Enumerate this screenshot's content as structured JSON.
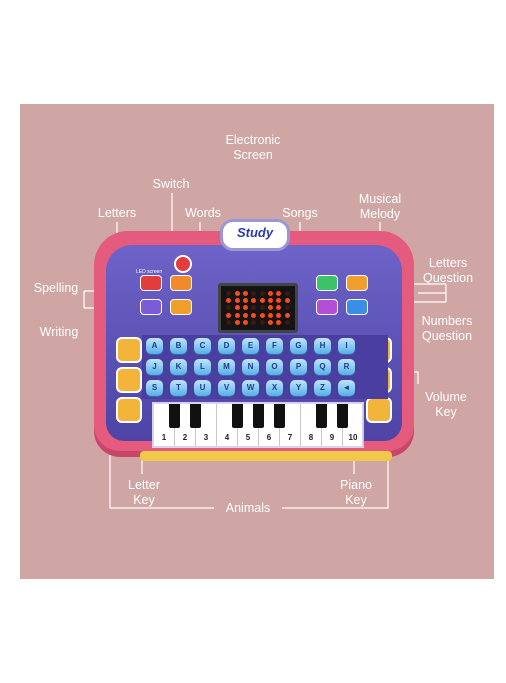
{
  "labels": {
    "electronic_screen": "Electronic\nScreen",
    "switch": "Switch",
    "letters": "Letters",
    "words": "Words",
    "songs": "Songs",
    "musical_melody": "Musical\nMelody",
    "letters_question": "Letters\nQuestion",
    "spelling": "Spelling",
    "writing": "Writing",
    "numbers_question": "Numbers\nQuestion",
    "volume_key": "Volume\nKey",
    "letter_key": "Letter\nKey",
    "piano_key": "Piano\nKey",
    "animals": "Animals"
  },
  "toy": {
    "logo": "Study",
    "led_caption": "LED screen",
    "letter_keys": [
      "A",
      "B",
      "C",
      "D",
      "E",
      "F",
      "G",
      "H",
      "I",
      "J",
      "K",
      "L",
      "M",
      "N",
      "O",
      "P",
      "Q",
      "R",
      "S",
      "T",
      "U",
      "V",
      "W",
      "X",
      "Y",
      "Z"
    ],
    "piano_numbers": [
      "1",
      "2",
      "3",
      "4",
      "5",
      "6",
      "7",
      "8",
      "9",
      "10"
    ]
  },
  "colors": {
    "background_panel": "#cfa6a4",
    "toy_shell": "#e45b7d",
    "toy_face": "#5a50b6",
    "key_blue": "#57aee6"
  }
}
